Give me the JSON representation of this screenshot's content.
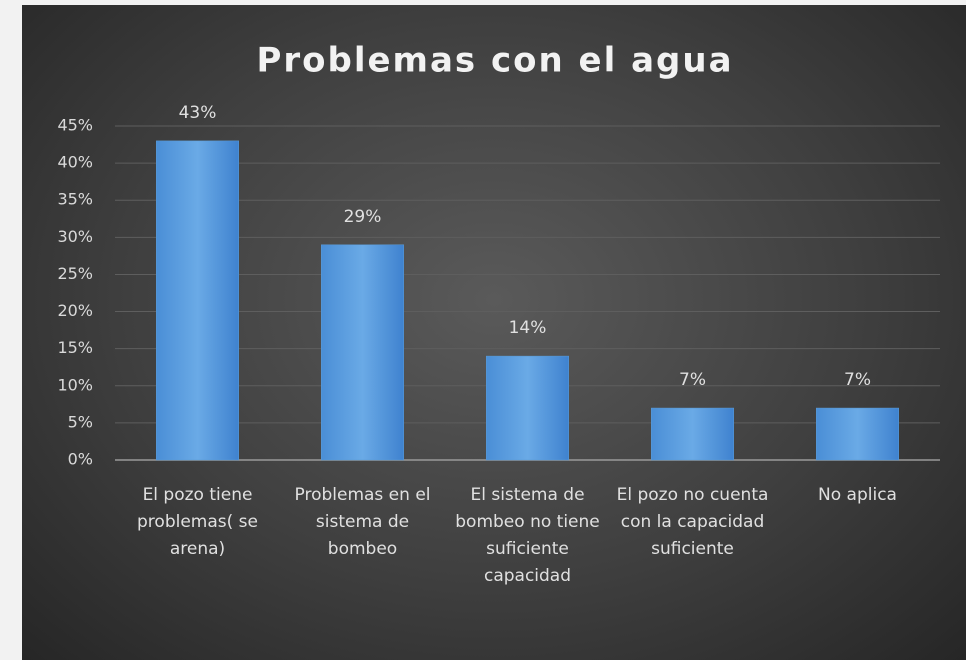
{
  "chart_data": {
    "type": "bar",
    "title": "Problemas  con el agua",
    "categories": [
      "El pozo tiene problemas( se arena)",
      "Problemas en el sistema de bombeo",
      "El sistema de bombeo no tiene suficiente capacidad",
      "El pozo no cuenta con la capacidad suficiente",
      "No aplica"
    ],
    "values": [
      43,
      29,
      14,
      7,
      7
    ],
    "value_labels": [
      "43%",
      "29%",
      "14%",
      "7%",
      "7%"
    ],
    "color": "#5b9bd5",
    "ylim": [
      0,
      45
    ],
    "yticks": [
      {
        "value": 0,
        "label": "0%"
      },
      {
        "value": 5,
        "label": "5%"
      },
      {
        "value": 10,
        "label": "10%"
      },
      {
        "value": 15,
        "label": "15%"
      },
      {
        "value": 20,
        "label": "20%"
      },
      {
        "value": 25,
        "label": "25%"
      },
      {
        "value": 30,
        "label": "30%"
      },
      {
        "value": 35,
        "label": "35%"
      },
      {
        "value": 40,
        "label": "40%"
      },
      {
        "value": 45,
        "label": "45%"
      }
    ],
    "grid": true
  }
}
